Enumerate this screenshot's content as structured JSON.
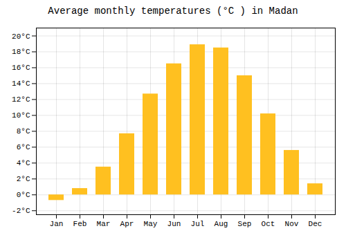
{
  "chart_data": {
    "type": "bar",
    "title": "Average monthly temperatures (°C ) in Madan",
    "categories": [
      "Jan",
      "Feb",
      "Mar",
      "Apr",
      "May",
      "Jun",
      "Jul",
      "Aug",
      "Sep",
      "Oct",
      "Nov",
      "Dec"
    ],
    "values": [
      -0.7,
      0.8,
      3.5,
      7.7,
      12.7,
      16.5,
      18.9,
      18.5,
      15.0,
      10.2,
      5.6,
      1.4
    ],
    "color": "#FFC020",
    "ylim": [
      -2.5,
      21
    ],
    "yticks": [
      {
        "value": -2,
        "label": "-2°C"
      },
      {
        "value": 0,
        "label": "0°C"
      },
      {
        "value": 2,
        "label": "2°C"
      },
      {
        "value": 4,
        "label": "4°C"
      },
      {
        "value": 6,
        "label": "6°C"
      },
      {
        "value": 8,
        "label": "8°C"
      },
      {
        "value": 10,
        "label": "10°C"
      },
      {
        "value": 12,
        "label": "12°C"
      },
      {
        "value": 14,
        "label": "14°C"
      },
      {
        "value": 16,
        "label": "16°C"
      },
      {
        "value": 18,
        "label": "18°C"
      },
      {
        "value": 20,
        "label": "20°C"
      }
    ],
    "grid": true
  }
}
